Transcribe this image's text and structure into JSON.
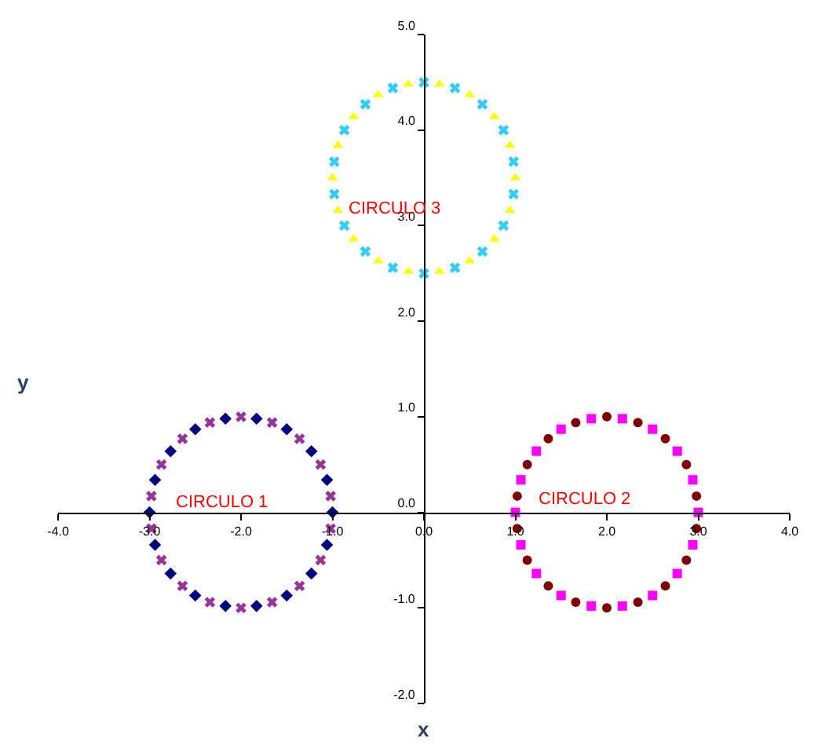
{
  "chart_data": {
    "type": "scatter",
    "xlabel": "x",
    "ylabel": "y",
    "xlim": [
      -4,
      4
    ],
    "xticks": [
      {
        "value": -4,
        "label": "-4.0"
      },
      {
        "value": -3,
        "label": "-3.0"
      },
      {
        "value": -2,
        "label": "-2.0"
      },
      {
        "value": -1,
        "label": "-1.0"
      },
      {
        "value": 0,
        "label": "0.0"
      },
      {
        "value": 1,
        "label": "1.0"
      },
      {
        "value": 2,
        "label": "2.0"
      },
      {
        "value": 3,
        "label": "3.0"
      },
      {
        "value": 4,
        "label": "4.0"
      }
    ],
    "ylim": [
      -2,
      5
    ],
    "yticks": [
      {
        "value": -2,
        "label": "-2.0"
      },
      {
        "value": -1,
        "label": "-1.0"
      },
      {
        "value": 0,
        "label": "0.0"
      },
      {
        "value": 1,
        "label": "1.0"
      },
      {
        "value": 2,
        "label": "2.0"
      },
      {
        "value": 3,
        "label": "3.0"
      },
      {
        "value": 4,
        "label": "4.0"
      },
      {
        "value": 5,
        "label": "5.0"
      }
    ],
    "series": [
      {
        "color": "#000080",
        "marker": "diamond",
        "x": [
          -1,
          -1.06,
          -1.23,
          -1.5,
          -1.83,
          -2.17,
          -2.5,
          -2.77,
          -2.94,
          -3,
          -2.94,
          -2.77,
          -2.5,
          -2.17,
          -1.83,
          -1.5,
          -1.23,
          -1.06
        ],
        "values": [
          0,
          0.34,
          0.64,
          0.87,
          0.98,
          0.98,
          0.87,
          0.64,
          0.34,
          0,
          -0.34,
          -0.64,
          -0.87,
          -0.98,
          -0.98,
          -0.87,
          -0.64,
          -0.34
        ]
      },
      {
        "color": "#993399",
        "marker": "cross",
        "x": [
          -1.02,
          -1.13,
          -1.36,
          -1.66,
          -2,
          -2.34,
          -2.64,
          -2.87,
          -2.98,
          -2.98,
          -2.87,
          -2.64,
          -2.34,
          -2,
          -1.66,
          -1.36,
          -1.13,
          -1.02
        ],
        "values": [
          0.17,
          0.5,
          0.77,
          0.94,
          1,
          0.94,
          0.77,
          0.5,
          0.17,
          -0.17,
          -0.5,
          -0.77,
          -0.94,
          -1,
          -0.94,
          -0.77,
          -0.5,
          -0.17
        ]
      },
      {
        "color": "#ff00ff",
        "marker": "square",
        "x": [
          3,
          2.94,
          2.77,
          2.5,
          2.17,
          1.83,
          1.5,
          1.23,
          1.06,
          1,
          1.06,
          1.23,
          1.5,
          1.83,
          2.17,
          2.5,
          2.77,
          2.94
        ],
        "values": [
          0,
          0.34,
          0.64,
          0.87,
          0.98,
          0.98,
          0.87,
          0.64,
          0.34,
          0,
          -0.34,
          -0.64,
          -0.87,
          -0.98,
          -0.98,
          -0.87,
          -0.64,
          -0.34
        ]
      },
      {
        "color": "#800000",
        "marker": "circle",
        "x": [
          2.98,
          2.87,
          2.64,
          2.34,
          2,
          1.66,
          1.36,
          1.13,
          1.02,
          1.02,
          1.13,
          1.36,
          1.66,
          2,
          2.34,
          2.64,
          2.87,
          2.98
        ],
        "values": [
          0.17,
          0.5,
          0.77,
          0.94,
          1,
          0.94,
          0.77,
          0.5,
          0.17,
          -0.17,
          -0.5,
          -0.77,
          -0.94,
          -1,
          -0.94,
          -0.77,
          -0.5,
          -0.17
        ]
      },
      {
        "color": "#ffff00",
        "marker": "triangle",
        "x": [
          1,
          0.94,
          0.77,
          0.5,
          0.17,
          -0.17,
          -0.5,
          -0.77,
          -0.94,
          -1,
          -0.94,
          -0.77,
          -0.5,
          -0.17,
          0.17,
          0.5,
          0.77,
          0.94
        ],
        "values": [
          3.5,
          3.84,
          4.14,
          4.37,
          4.48,
          4.48,
          4.37,
          4.14,
          3.84,
          3.5,
          3.16,
          2.86,
          2.63,
          2.52,
          2.52,
          2.63,
          2.86,
          3.16
        ]
      },
      {
        "color": "#33ccff",
        "marker": "cross",
        "x": [
          0.98,
          0.87,
          0.64,
          0.34,
          0,
          -0.34,
          -0.64,
          -0.87,
          -0.98,
          -0.98,
          -0.87,
          -0.64,
          -0.34,
          0,
          0.34,
          0.64,
          0.87,
          0.98
        ],
        "values": [
          3.67,
          4,
          4.27,
          4.44,
          4.5,
          4.44,
          4.27,
          4,
          3.67,
          3.33,
          3,
          2.73,
          2.56,
          2.5,
          2.56,
          2.73,
          3,
          3.33
        ]
      }
    ],
    "annotations": [
      "CIRCULO 1",
      "CIRCULO 2",
      "CIRCULO 3"
    ]
  }
}
